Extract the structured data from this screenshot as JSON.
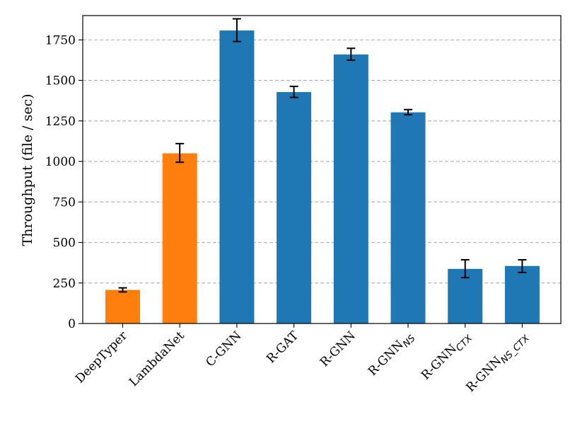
{
  "chart_data": {
    "type": "bar",
    "title": "",
    "xlabel": "",
    "ylabel": "Throughput (file / sec)",
    "ylim": [
      0,
      1900
    ],
    "yticks": [
      0,
      250,
      500,
      750,
      1000,
      1250,
      1500,
      1750
    ],
    "grid": "y-dashed",
    "categories": [
      {
        "base": "DeepTyper",
        "sub": ""
      },
      {
        "base": "LambdaNet",
        "sub": ""
      },
      {
        "base": "C-GNN",
        "sub": ""
      },
      {
        "base": "R-GAT",
        "sub": ""
      },
      {
        "base": "R-GNN",
        "sub": ""
      },
      {
        "base": "R-GNN",
        "sub": "NS"
      },
      {
        "base": "R-GNN",
        "sub": "CTX"
      },
      {
        "base": "R-GNN",
        "sub": "NS_CTX"
      }
    ],
    "values": [
      207,
      1050,
      1808,
      1428,
      1660,
      1303,
      337,
      355
    ],
    "errors": [
      [
        195,
        220
      ],
      [
        995,
        1110
      ],
      [
        1740,
        1880
      ],
      [
        1395,
        1463
      ],
      [
        1625,
        1698
      ],
      [
        1288,
        1320
      ],
      [
        283,
        393
      ],
      [
        315,
        393
      ]
    ],
    "bar_colors": [
      "#ff7f0e",
      "#ff7f0e",
      "#1f77b4",
      "#1f77b4",
      "#1f77b4",
      "#1f77b4",
      "#1f77b4",
      "#1f77b4"
    ],
    "grid_color": "#b0b0b0"
  }
}
